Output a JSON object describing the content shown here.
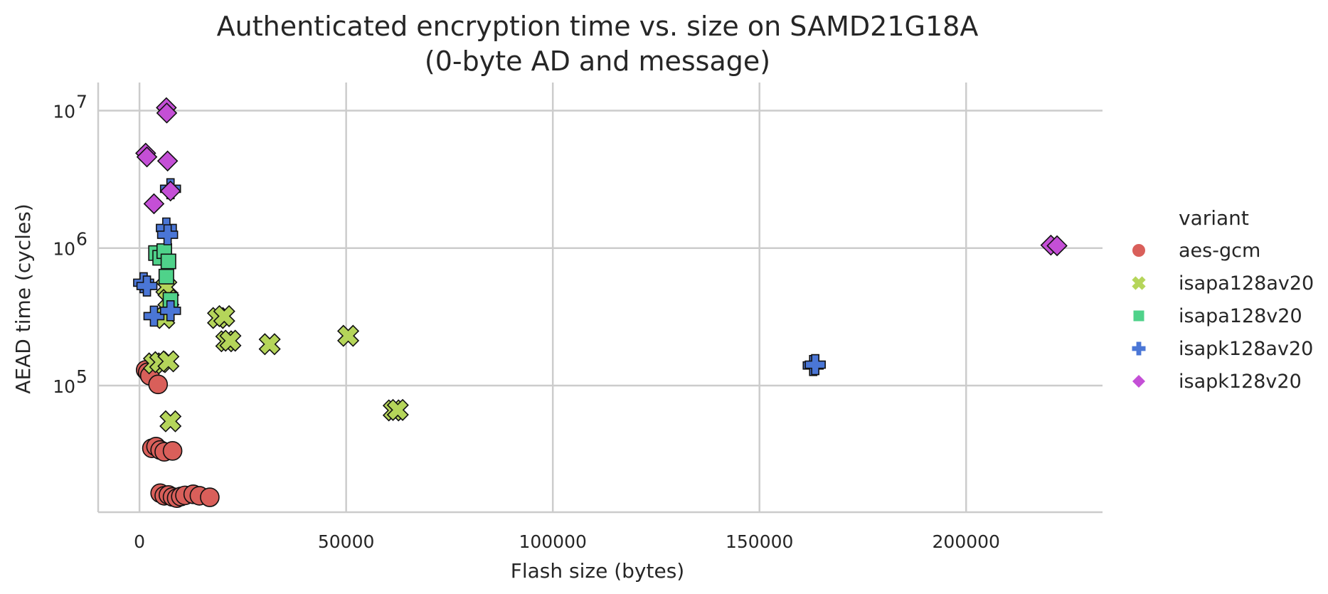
{
  "chart_data": {
    "type": "scatter",
    "title_line1": "Authenticated encryption time vs. size on SAMD21G18A",
    "title_line2": "(0-byte AD and message)",
    "xlabel": "Flash size (bytes)",
    "ylabel": "AEAD time (cycles)",
    "xlim": [
      -10000,
      233000
    ],
    "ylim": [
      12000,
      16000000
    ],
    "yscale": "log",
    "grid": true,
    "legend_position": "right",
    "legend_title": "variant",
    "x_ticks": [
      0,
      50000,
      100000,
      150000,
      200000
    ],
    "x_tick_labels": [
      "0",
      "50000",
      "100000",
      "150000",
      "200000"
    ],
    "y_ticks": [
      100000,
      1000000,
      10000000
    ],
    "y_tick_bases": [
      "10",
      "10",
      "10"
    ],
    "y_tick_exps": [
      "5",
      "6",
      "7"
    ],
    "series": [
      {
        "name": "aes-gcm",
        "color": "#d95f5a",
        "marker": "circle",
        "points": [
          [
            1500,
            130000
          ],
          [
            2000,
            125000
          ],
          [
            2500,
            118000
          ],
          [
            4500,
            102000
          ],
          [
            3000,
            35000
          ],
          [
            4000,
            36000
          ],
          [
            5000,
            34000
          ],
          [
            6000,
            33000
          ],
          [
            8000,
            33500
          ],
          [
            5000,
            16500
          ],
          [
            6000,
            15800
          ],
          [
            7000,
            16000
          ],
          [
            8000,
            15500
          ],
          [
            9000,
            15200
          ],
          [
            10000,
            15600
          ],
          [
            11000,
            15900
          ],
          [
            13000,
            16200
          ],
          [
            14500,
            15800
          ],
          [
            17000,
            15400
          ]
        ]
      },
      {
        "name": "isapa128av20",
        "color": "#b5d55a",
        "marker": "x",
        "points": [
          [
            3500,
            145000
          ],
          [
            5000,
            148000
          ],
          [
            7000,
            150000
          ],
          [
            7500,
            55000
          ],
          [
            6000,
            310000
          ],
          [
            6500,
            520000
          ],
          [
            7000,
            420000
          ],
          [
            19000,
            310000
          ],
          [
            20500,
            320000
          ],
          [
            21000,
            210000
          ],
          [
            22000,
            212000
          ],
          [
            31500,
            200000
          ],
          [
            50500,
            230000
          ],
          [
            61500,
            66000
          ],
          [
            62500,
            66500
          ]
        ]
      },
      {
        "name": "isapa128v20",
        "color": "#4fd28a",
        "marker": "square",
        "points": [
          [
            4000,
            920000
          ],
          [
            5000,
            850000
          ],
          [
            6000,
            950000
          ],
          [
            7000,
            800000
          ],
          [
            6500,
            620000
          ],
          [
            7500,
            420000
          ]
        ]
      },
      {
        "name": "isapk128av20",
        "color": "#4a76d6",
        "marker": "plus",
        "points": [
          [
            1000,
            560000
          ],
          [
            1800,
            530000
          ],
          [
            3500,
            320000
          ],
          [
            6500,
            1400000
          ],
          [
            6800,
            1250000
          ],
          [
            7500,
            2700000
          ],
          [
            7500,
            350000
          ],
          [
            163000,
            140000
          ],
          [
            163500,
            142000
          ]
        ]
      },
      {
        "name": "isapk128v20",
        "color": "#c44fd6",
        "marker": "diamond",
        "points": [
          [
            1500,
            4900000
          ],
          [
            1800,
            4600000
          ],
          [
            3500,
            2100000
          ],
          [
            6500,
            10500000
          ],
          [
            6600,
            9600000
          ],
          [
            6800,
            4300000
          ],
          [
            7500,
            2600000
          ],
          [
            220500,
            1050000
          ],
          [
            222000,
            1040000
          ]
        ]
      }
    ]
  }
}
